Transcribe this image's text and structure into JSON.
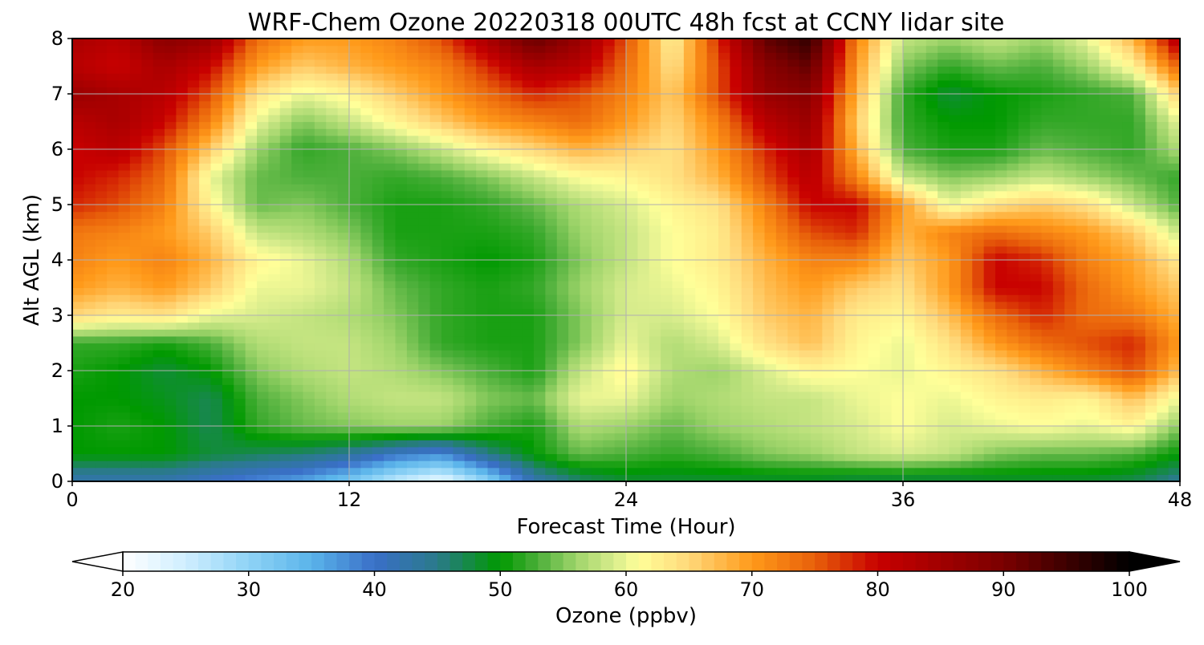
{
  "chart_data": {
    "type": "heatmap",
    "title": "WRF-Chem Ozone  20220318 00UTC 48h fcst at CCNY lidar site",
    "xlabel": "Forecast Time (Hour)",
    "ylabel": "Alt AGL (km)",
    "xlim": [
      0,
      48
    ],
    "ylim": [
      0,
      8
    ],
    "xticks": [
      0,
      12,
      24,
      36,
      48
    ],
    "yticks": [
      0,
      1,
      2,
      3,
      4,
      5,
      6,
      7,
      8
    ],
    "grid": true,
    "colorbar": {
      "label": "Ozone  (ppbv)",
      "orientation": "horizontal",
      "placement": "bottom",
      "range": [
        20,
        100
      ],
      "ticks": [
        20,
        30,
        40,
        50,
        60,
        70,
        80,
        90,
        100
      ],
      "extend": "both",
      "colors": [
        {
          "value": 20,
          "color": "#ffffff"
        },
        {
          "value": 25,
          "color": "#cfeeff"
        },
        {
          "value": 30,
          "color": "#8fd3f6"
        },
        {
          "value": 35,
          "color": "#5ab4ea"
        },
        {
          "value": 40,
          "color": "#3a6fc8"
        },
        {
          "value": 45,
          "color": "#2a7a8a"
        },
        {
          "value": 50,
          "color": "#009900"
        },
        {
          "value": 53,
          "color": "#4caf3a"
        },
        {
          "value": 56,
          "color": "#9ed46a"
        },
        {
          "value": 59,
          "color": "#d7ec8c"
        },
        {
          "value": 61,
          "color": "#ffff99"
        },
        {
          "value": 65,
          "color": "#ffd87a"
        },
        {
          "value": 70,
          "color": "#ff9a1a"
        },
        {
          "value": 75,
          "color": "#e8600a"
        },
        {
          "value": 80,
          "color": "#c80000"
        },
        {
          "value": 90,
          "color": "#7a0000"
        },
        {
          "value": 100,
          "color": "#000000"
        }
      ]
    },
    "x": [
      0,
      2,
      4,
      6,
      8,
      10,
      12,
      14,
      16,
      18,
      20,
      22,
      24,
      26,
      28,
      30,
      32,
      34,
      36,
      38,
      40,
      42,
      44,
      46,
      48
    ],
    "y": [
      0,
      0.5,
      1,
      1.5,
      2,
      2.5,
      3,
      3.5,
      4,
      4.5,
      5,
      5.5,
      6,
      6.5,
      7,
      7.5,
      8
    ],
    "values": [
      [
        42,
        42,
        42,
        40,
        38,
        36,
        32,
        26,
        22,
        30,
        42,
        46,
        48,
        48,
        48,
        48,
        48,
        47,
        47,
        47,
        48,
        48,
        48,
        47,
        44
      ],
      [
        50,
        50,
        50,
        48,
        47,
        46,
        44,
        40,
        38,
        45,
        50,
        54,
        53,
        52,
        53,
        55,
        56,
        58,
        59,
        58,
        55,
        54,
        54,
        53,
        50
      ],
      [
        50,
        51,
        50,
        47,
        52,
        54,
        55,
        56,
        56,
        53,
        51,
        57,
        56,
        54,
        56,
        57,
        58,
        59,
        61,
        59,
        60,
        61,
        60,
        62,
        55
      ],
      [
        50,
        50,
        49,
        47,
        53,
        55,
        57,
        58,
        58,
        55,
        54,
        60,
        60,
        56,
        57,
        58,
        58,
        60,
        61,
        60,
        62,
        63,
        62,
        67,
        60
      ],
      [
        51,
        50,
        48,
        50,
        55,
        57,
        58,
        57,
        55,
        53,
        51,
        58,
        62,
        57,
        56,
        59,
        62,
        61,
        60,
        62,
        64,
        68,
        72,
        76,
        67
      ],
      [
        52,
        52,
        51,
        53,
        57,
        58,
        58,
        56,
        52,
        51,
        51,
        55,
        60,
        57,
        59,
        64,
        67,
        62,
        60,
        64,
        70,
        74,
        76,
        78,
        70
      ],
      [
        65,
        63,
        64,
        60,
        59,
        58,
        57,
        55,
        52,
        51,
        51,
        55,
        59,
        59,
        61,
        66,
        68,
        63,
        62,
        67,
        74,
        78,
        74,
        73,
        68
      ],
      [
        70,
        68,
        70,
        66,
        60,
        60,
        58,
        54,
        52,
        51,
        52,
        56,
        59,
        60,
        62,
        67,
        70,
        66,
        64,
        70,
        80,
        80,
        74,
        70,
        66
      ],
      [
        72,
        70,
        72,
        68,
        62,
        60,
        57,
        52,
        51,
        50,
        51,
        55,
        58,
        61,
        63,
        68,
        72,
        72,
        66,
        70,
        80,
        78,
        72,
        69,
        63
      ],
      [
        73,
        72,
        70,
        66,
        58,
        57,
        55,
        51,
        51,
        51,
        52,
        56,
        58,
        61,
        63,
        70,
        76,
        78,
        68,
        72,
        74,
        72,
        70,
        66,
        58
      ],
      [
        78,
        76,
        72,
        62,
        54,
        55,
        53,
        51,
        51,
        52,
        54,
        57,
        59,
        62,
        64,
        72,
        80,
        80,
        70,
        60,
        64,
        66,
        64,
        58,
        53
      ],
      [
        80,
        78,
        74,
        60,
        54,
        53,
        53,
        52,
        53,
        55,
        58,
        61,
        62,
        64,
        68,
        76,
        82,
        72,
        58,
        55,
        56,
        58,
        56,
        54,
        52
      ],
      [
        80,
        82,
        76,
        66,
        56,
        52,
        53,
        55,
        58,
        62,
        65,
        68,
        66,
        64,
        70,
        78,
        84,
        68,
        53,
        51,
        51,
        54,
        53,
        52,
        57
      ],
      [
        82,
        84,
        80,
        72,
        60,
        55,
        58,
        62,
        66,
        70,
        72,
        74,
        70,
        65,
        72,
        82,
        86,
        66,
        52,
        50,
        50,
        52,
        52,
        52,
        60
      ],
      [
        86,
        84,
        82,
        76,
        64,
        60,
        62,
        66,
        70,
        74,
        78,
        76,
        72,
        66,
        76,
        86,
        88,
        68,
        52,
        48,
        50,
        51,
        52,
        53,
        66
      ],
      [
        82,
        80,
        84,
        80,
        70,
        66,
        68,
        70,
        72,
        78,
        84,
        82,
        74,
        64,
        76,
        88,
        92,
        70,
        55,
        52,
        54,
        53,
        56,
        62,
        75
      ],
      [
        84,
        82,
        88,
        86,
        74,
        70,
        70,
        72,
        76,
        84,
        92,
        86,
        76,
        62,
        78,
        92,
        96,
        72,
        58,
        56,
        58,
        56,
        60,
        68,
        84
      ]
    ]
  }
}
